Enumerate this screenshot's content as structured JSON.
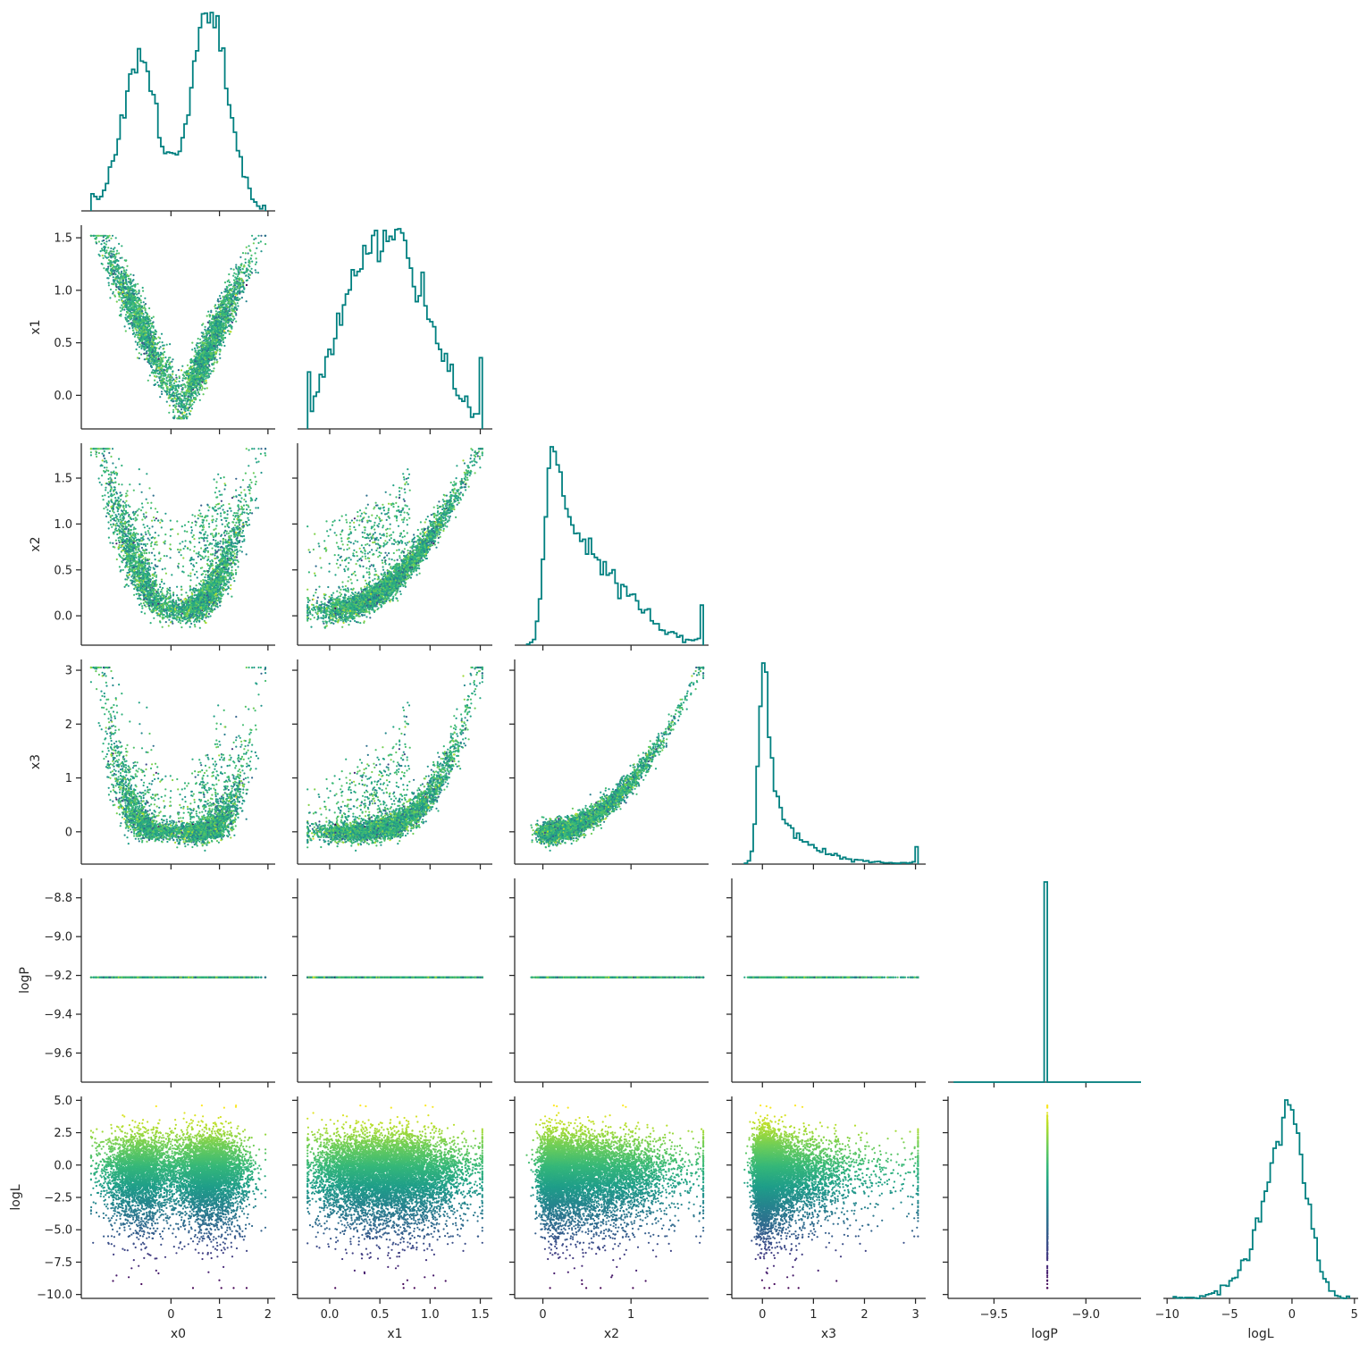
{
  "chart_data": {
    "type": "scatter",
    "title": "",
    "variables": [
      "x0",
      "x1",
      "x2",
      "x3",
      "logP",
      "logL"
    ],
    "axis_labels": {
      "x0": "x0",
      "x1": "x1",
      "x2": "x2",
      "x3": "x3",
      "logP": "logP",
      "logL": "logL"
    },
    "ranges": {
      "x0": [
        -1.85,
        2.15
      ],
      "x1": [
        -0.32,
        1.62
      ],
      "x2": [
        -0.32,
        1.88
      ],
      "x3": [
        -0.6,
        3.2
      ],
      "logP": [
        -9.75,
        -8.7
      ],
      "logL": [
        -10.3,
        5.3
      ]
    },
    "ticks": {
      "x0": [
        0,
        1,
        2
      ],
      "x1": [
        0.0,
        0.5,
        1.0,
        1.5
      ],
      "x2": [
        0,
        1
      ],
      "x3": [
        0,
        1,
        2,
        3
      ],
      "logP": [
        -9.5,
        -9.0
      ],
      "logL": [
        -10,
        -5,
        0,
        5
      ]
    },
    "tick_labels": {
      "x0": [
        "0",
        "1",
        "2"
      ],
      "x1": [
        "0.0",
        "0.5",
        "1.0",
        "1.5"
      ],
      "x2": [
        "0",
        "1"
      ],
      "x3": [
        "0",
        "1",
        "2",
        "3"
      ],
      "logP": [
        "−9.5",
        "−9.0"
      ],
      "logL": [
        "−10",
        "−5",
        "0",
        "5"
      ]
    },
    "y_ticks": {
      "x1": [
        0.0,
        0.5,
        1.0,
        1.5
      ],
      "x2": [
        0.0,
        0.5,
        1.0,
        1.5
      ],
      "x3": [
        0,
        1,
        2,
        3
      ],
      "logP": [
        -9.6,
        -9.4,
        -9.2,
        -9.0,
        -8.8
      ],
      "logL": [
        -10.0,
        -7.5,
        -5.0,
        -2.5,
        0.0,
        2.5,
        5.0
      ]
    },
    "y_tick_labels": {
      "x1": [
        "0.0",
        "0.5",
        "1.0",
        "1.5"
      ],
      "x2": [
        "0.0",
        "0.5",
        "1.0",
        "1.5"
      ],
      "x3": [
        "0",
        "1",
        "2",
        "3"
      ],
      "logP": [
        "−9.6",
        "−9.4",
        "−9.2",
        "−9.0",
        "−8.8"
      ],
      "logL": [
        "−10.0",
        "−7.5",
        "−5.0",
        "−2.5",
        "0.0",
        "2.5",
        "5.0"
      ]
    },
    "logP_value": -9.21,
    "sample_count": 8000,
    "colormap": "viridis",
    "color_by": "logL",
    "histogram_color": "#008080",
    "grid": false,
    "legend": "none",
    "layout": "lower-triangle corner plot"
  }
}
